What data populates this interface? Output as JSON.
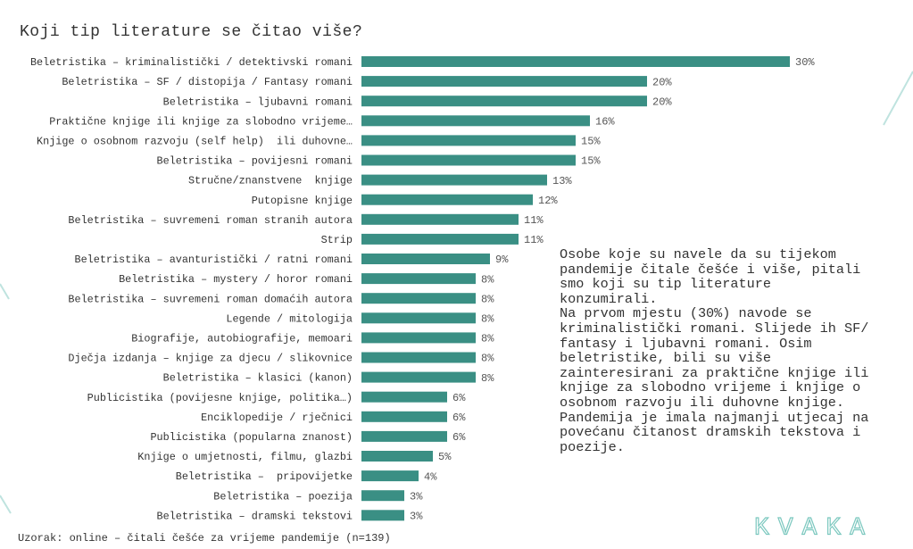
{
  "chart_data": {
    "type": "bar",
    "orientation": "horizontal",
    "title": "Koji tip literature se čitao više?",
    "categories": [
      "Beletristika – kriminalistički / detektivski romani",
      "Beletristika – SF / distopija / Fantasy romani",
      "Beletristika – ljubavni romani",
      "Praktične knjige ili knjige za slobodno vrijeme…",
      "Knjige o osobnom razvoju (self help)  ili duhovne…",
      "Beletristika – povijesni romani",
      "Stručne/znanstvene  knjige",
      "Putopisne knjige",
      "Beletristika – suvremeni roman stranih autora",
      "Strip",
      "Beletristika – avanturistički / ratni romani",
      "Beletristika – mystery / horor romani",
      "Beletristika – suvremeni roman domaćih autora",
      "Legende / mitologija",
      "Biografije, autobiografije, memoari",
      "Dječja izdanja – knjige za djecu / slikovnice",
      "Beletristika – klasici (kanon)",
      "Publicistika (povijesne knjige, politika…)",
      "Enciklopedije / rječnici",
      "Publicistika (popularna znanost)",
      "Knjige o umjetnosti, filmu, glazbi",
      "Beletristika –  pripovijetke",
      "Beletristika – poezija",
      "Beletristika – dramski tekstovi"
    ],
    "values": [
      30,
      20,
      20,
      16,
      15,
      15,
      13,
      12,
      11,
      11,
      9,
      8,
      8,
      8,
      8,
      8,
      8,
      6,
      6,
      6,
      5,
      4,
      3,
      3
    ],
    "value_labels": [
      "30%",
      "20%",
      "20%",
      "16%",
      "15%",
      "15%",
      "13%",
      "12%",
      "11%",
      "11%",
      "9%",
      "8%",
      "8%",
      "8%",
      "8%",
      "8%",
      "8%",
      "6%",
      "6%",
      "6%",
      "5%",
      "4%",
      "3%",
      "3%"
    ],
    "color": "#3a8f84",
    "note": [
      "Osobe koje su navele da su tijekom pandemije čitale češće i više, pitali smo koji su tip literature konzumirali.",
      "Na prvom mjestu (30%) navode se kriminalistički romani. Slijede ih SF/ fantasy i ljubavni romani. Osim beletristike, bili su više zainteresirani za praktične knjige ili knjige za slobodno vrijeme i knjige o osobnom razvoju ili duhovne knjige. Pandemija je imala najmanji utjecaj na povećanu čitanost dramskih tekstova i poezije."
    ],
    "footnote": "Uzorak: online – čitali češće za vrijeme pandemije (n=139)",
    "logo": "KVAKA"
  }
}
